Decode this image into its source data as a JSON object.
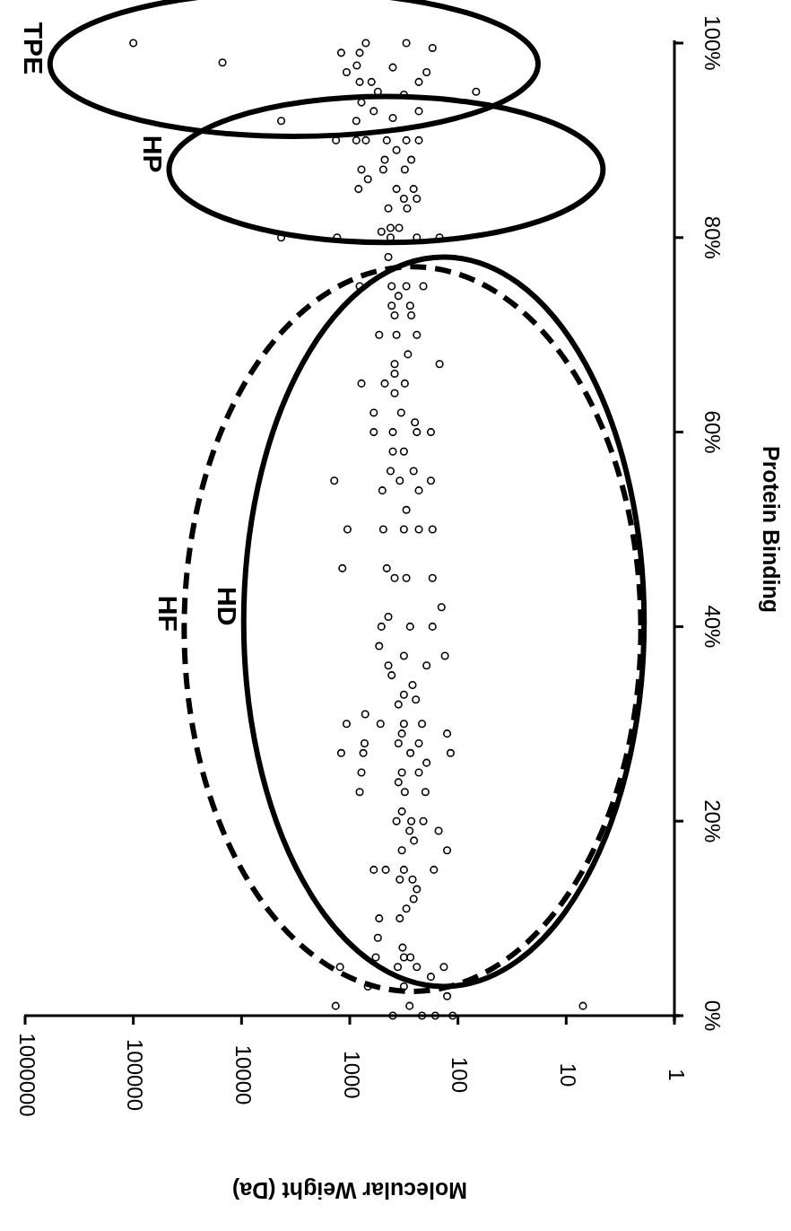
{
  "chart_data": {
    "type": "scatter",
    "xlabel": "Molecular Weight (Da)",
    "ylabel": "Protein Binding",
    "xlim": [
      1000000,
      1
    ],
    "xticks": [
      1000000,
      100000,
      10000,
      1000,
      100,
      10,
      1
    ],
    "log": "x",
    "ylim": [
      0,
      100
    ],
    "yticks": [
      {
        "value": 0,
        "label": "0%"
      },
      {
        "value": 20,
        "label": "20%"
      },
      {
        "value": 40,
        "label": "40%"
      },
      {
        "value": 60,
        "label": "60%"
      },
      {
        "value": 80,
        "label": "80%"
      },
      {
        "value": 100,
        "label": "100%"
      }
    ],
    "marker": "circle",
    "annotations": [
      "HF",
      "HD",
      "HP",
      "TPE"
    ],
    "series": [
      {
        "color": "#000000",
        "x": [
          100000,
          15000,
          1200,
          68,
          4300,
          870,
          710,
          300,
          172,
          810,
          860,
          1070,
          810,
          630,
          230,
          195,
          550,
          400,
          316,
          780,
          600,
          230,
          400,
          1340,
          870,
          710,
          455,
          300,
          230,
          370,
          475,
          270,
          780,
          490,
          310,
          680,
          830,
          370,
          257,
          240,
          316,
          440,
          295,
          420,
          350,
          4300,
          1310,
          510,
          420,
          240,
          148,
          440,
          810,
          410,
          300,
          209,
          355,
          410,
          277,
          385,
          270,
          535,
          370,
          240,
          290,
          385,
          148,
          385,
          780,
          475,
          310,
          385,
          600,
          335,
          250,
          600,
          400,
          240,
          178,
          400,
          316,
          420,
          257,
          1390,
          345,
          178,
          500,
          230,
          300,
          1050,
          490,
          316,
          230,
          172,
          1170,
          455,
          385,
          300,
          172,
          142,
          440,
          510,
          277,
          172,
          535,
          316,
          132,
          440,
          195,
          410,
          263,
          316,
          355,
          245,
          720,
          1070,
          520,
          316,
          215,
          126,
          330,
          355,
          730,
          1200,
          750,
          230,
          275,
          117,
          195,
          780,
          330,
          230,
          355,
          810,
          310,
          200,
          330,
          370,
          270,
          209,
          151,
          280,
          255,
          330,
          126,
          600,
          465,
          316,
          167,
          345,
          263,
          240,
          257,
          300,
          535,
          345,
          550,
          325,
          575,
          316,
          275,
          1230,
          360,
          240,
          135,
          680,
          316,
          178,
          126,
          1350,
          7,
          280,
          400,
          215,
          162,
          112
        ],
        "values": [
          100,
          98,
          99,
          95,
          92,
          92,
          100,
          100,
          99.5,
          99,
          97.7,
          97,
          96,
          96,
          96,
          97,
          95,
          97.5,
          94.7,
          93.9,
          93,
          93,
          92.3,
          90,
          90,
          90,
          90,
          90,
          90,
          89,
          88,
          88,
          87,
          87,
          87,
          86,
          85,
          85,
          85,
          84,
          84,
          83,
          83,
          81,
          81,
          80,
          80,
          80.6,
          80,
          80,
          80,
          78,
          75,
          75,
          75,
          75,
          74,
          73,
          73,
          72,
          72,
          70,
          70,
          70,
          68,
          67,
          67,
          66,
          65,
          65,
          65,
          64,
          62,
          62,
          61,
          60,
          60,
          60,
          60,
          58,
          58,
          56,
          56,
          55,
          55,
          55,
          54,
          54,
          52,
          50,
          50,
          50,
          50,
          50,
          46,
          46,
          45,
          45,
          45,
          42,
          41,
          40,
          40,
          40,
          38,
          37,
          37,
          36,
          36,
          35,
          34,
          33,
          32,
          32.5,
          31,
          30,
          30,
          30,
          30,
          29,
          29,
          28,
          28,
          27,
          27,
          28,
          27,
          27,
          26,
          25,
          25,
          25,
          24,
          23,
          23,
          23,
          21,
          20,
          20,
          20,
          19,
          19,
          18,
          17,
          17,
          15,
          15,
          15,
          15,
          14,
          14,
          13,
          12,
          11,
          10,
          10,
          8,
          7,
          6,
          6,
          6,
          5,
          5,
          5,
          5,
          3,
          3,
          4,
          2,
          1,
          1,
          1,
          0,
          0,
          0,
          0
        ]
      }
    ]
  }
}
